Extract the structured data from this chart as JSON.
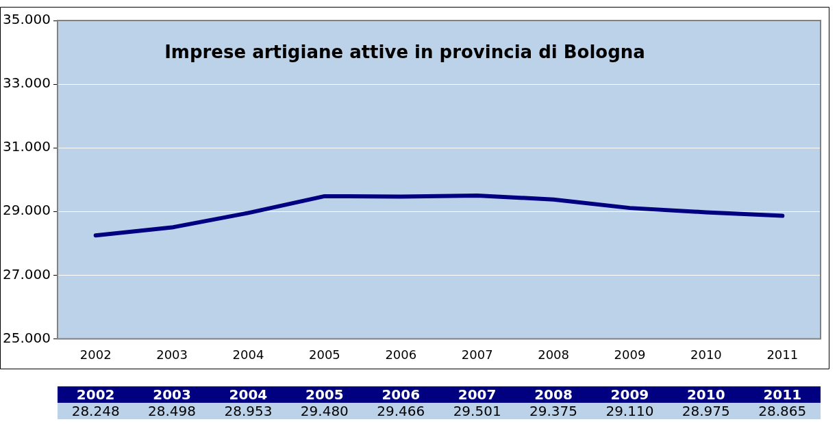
{
  "chart_data": {
    "type": "line",
    "title": "Imprese artigiane attive in provincia di Bologna",
    "categories": [
      "2002",
      "2003",
      "2004",
      "2005",
      "2006",
      "2007",
      "2008",
      "2009",
      "2010",
      "2011"
    ],
    "series": [
      {
        "color": "#000080",
        "values": [
          28248,
          28498,
          28953,
          29480,
          29466,
          29501,
          29375,
          29110,
          28975,
          28865
        ],
        "value_labels": [
          "28.248",
          "28.498",
          "28.953",
          "29.480",
          "29.466",
          "29.501",
          "29.375",
          "29.110",
          "28.975",
          "28.865"
        ]
      }
    ],
    "ylim": [
      25000,
      35000
    ],
    "yticks": [
      {
        "value": 25000,
        "label": "25.000"
      },
      {
        "value": 27000,
        "label": "27.000"
      },
      {
        "value": 29000,
        "label": "29.000"
      },
      {
        "value": 31000,
        "label": "31.000"
      },
      {
        "value": 33000,
        "label": "33.000"
      },
      {
        "value": 35000,
        "label": "35.000"
      }
    ],
    "grid": "y",
    "legend": false,
    "marker": "none",
    "line_style": "solid"
  }
}
